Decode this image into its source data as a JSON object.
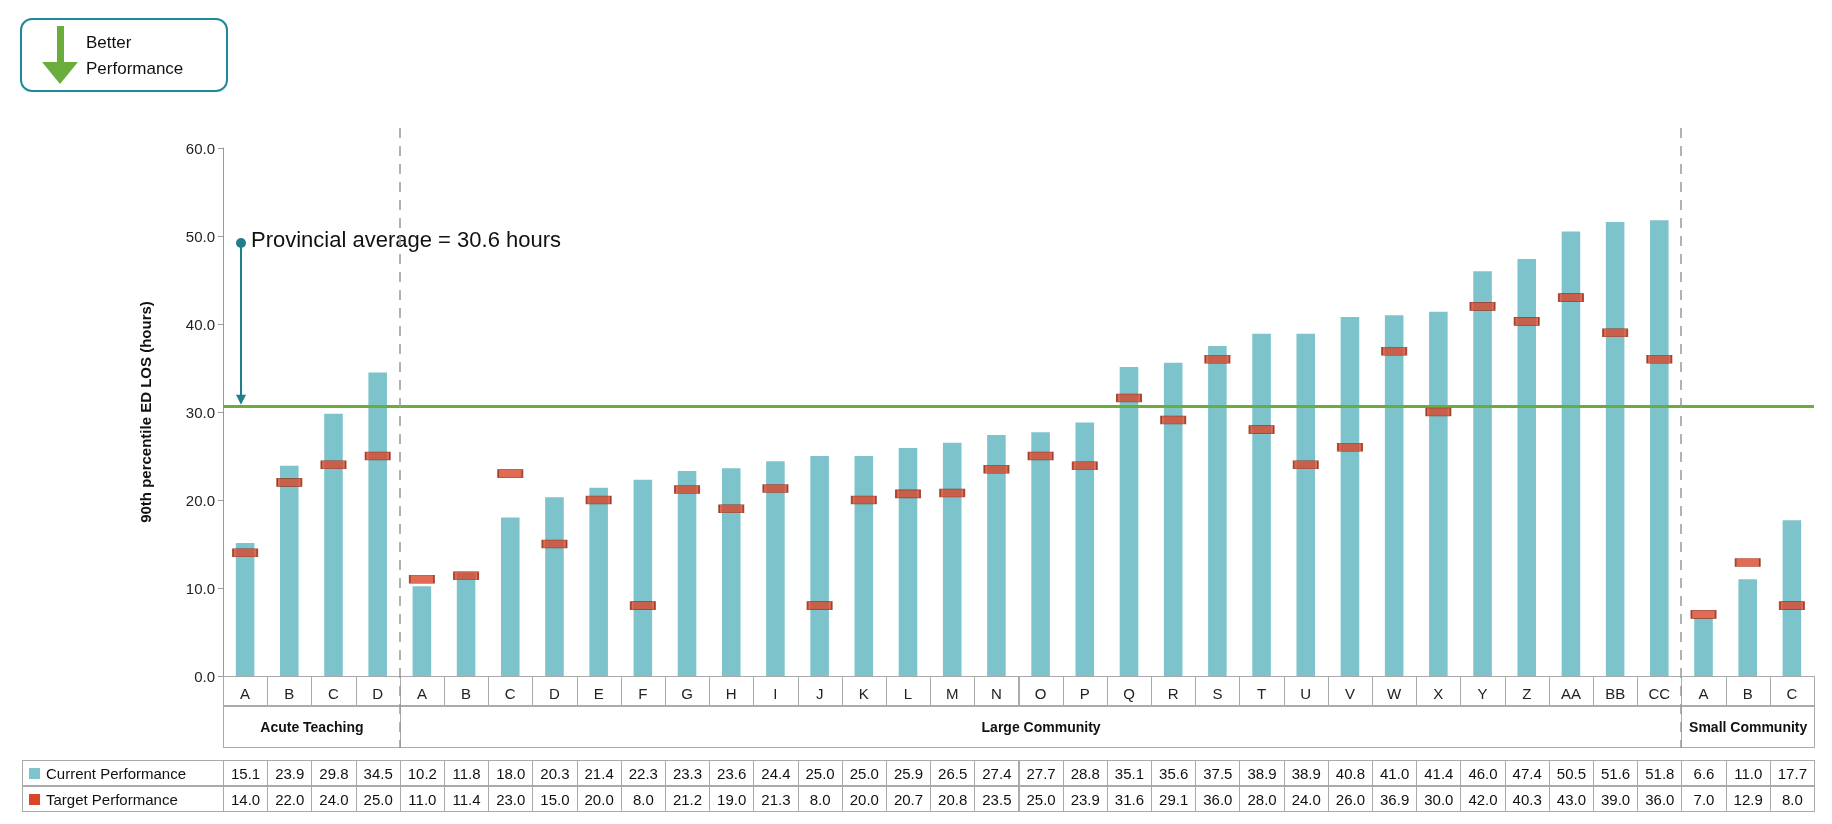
{
  "chart_data": {
    "type": "bar",
    "ylabel": "90th percentile ED LOS (hours)",
    "categories": [
      "A",
      "B",
      "C",
      "D",
      "A",
      "B",
      "C",
      "D",
      "E",
      "F",
      "G",
      "H",
      "I",
      "J",
      "K",
      "L",
      "M",
      "N",
      "O",
      "P",
      "Q",
      "R",
      "S",
      "T",
      "U",
      "V",
      "W",
      "X",
      "Y",
      "Z",
      "AA",
      "BB",
      "CC",
      "A",
      "B",
      "C"
    ],
    "series": [
      {
        "name": "Current Performance",
        "color": "#7cc3cb",
        "values": [
          15.1,
          23.9,
          29.8,
          34.5,
          10.2,
          11.8,
          18.0,
          20.3,
          21.4,
          22.3,
          23.3,
          23.6,
          24.4,
          25.0,
          25.0,
          25.9,
          26.5,
          27.4,
          27.7,
          28.8,
          35.1,
          35.6,
          37.5,
          38.9,
          38.9,
          40.8,
          41.0,
          41.4,
          46.0,
          47.4,
          50.5,
          51.6,
          51.8,
          6.6,
          11.0,
          17.7
        ],
        "value_labels": [
          "15.1",
          "23.9",
          "29.8",
          "34.5",
          "10.2",
          "11.8",
          "18.0",
          "20.3",
          "21.4",
          "22.3",
          "23.3",
          "23.6",
          "24.4",
          "25.0",
          "25.0",
          "25.9",
          "26.5",
          "27.4",
          "27.7",
          "28.8",
          "35.1",
          "35.6",
          "37.5",
          "38.9",
          "38.9",
          "40.8",
          "41.0",
          "41.4",
          "46.0",
          "47.4",
          "50.5",
          "51.6",
          "51.8",
          "6.6",
          "11.0",
          "17.7"
        ]
      },
      {
        "name": "Target Performance",
        "type": "scatter",
        "color": "#d9462a",
        "values": [
          14.0,
          22.0,
          24.0,
          25.0,
          11.0,
          11.4,
          23.0,
          15.0,
          20.0,
          8.0,
          21.2,
          19.0,
          21.3,
          8.0,
          20.0,
          20.7,
          20.8,
          23.5,
          25.0,
          23.9,
          31.6,
          29.1,
          36.0,
          28.0,
          24.0,
          26.0,
          36.9,
          30.0,
          42.0,
          40.3,
          43.0,
          39.0,
          36.0,
          7.0,
          12.9,
          8.0
        ],
        "value_labels": [
          "14.0",
          "22.0",
          "24.0",
          "25.0",
          "11.0",
          "11.4",
          "23.0",
          "15.0",
          "20.0",
          "8.0",
          "21.2",
          "19.0",
          "21.3",
          "8.0",
          "20.0",
          "20.7",
          "20.8",
          "23.5",
          "25.0",
          "23.9",
          "31.6",
          "29.1",
          "36.0",
          "28.0",
          "24.0",
          "26.0",
          "36.9",
          "30.0",
          "42.0",
          "40.3",
          "43.0",
          "39.0",
          "36.0",
          "7.0",
          "12.9",
          "8.0"
        ]
      }
    ],
    "ylim": [
      0,
      60
    ],
    "yticks": [
      {
        "value": 0,
        "label": "0.0"
      },
      {
        "value": 10,
        "label": "10.0"
      },
      {
        "value": 20,
        "label": "20.0"
      },
      {
        "value": 30,
        "label": "30.0"
      },
      {
        "value": 40,
        "label": "40.0"
      },
      {
        "value": 50,
        "label": "50.0"
      },
      {
        "value": 60,
        "label": "60.0"
      }
    ],
    "ref_lines": [
      {
        "axis": "y",
        "value": 30.6,
        "label": "Provincial average = 30.6 hours",
        "color": "#6aad3d"
      }
    ],
    "annotations": [
      "Better Performance",
      "Acute Teaching",
      "Large Community",
      "Small Community"
    ],
    "marker": "square",
    "grid": false,
    "legend": "bottom"
  }
}
